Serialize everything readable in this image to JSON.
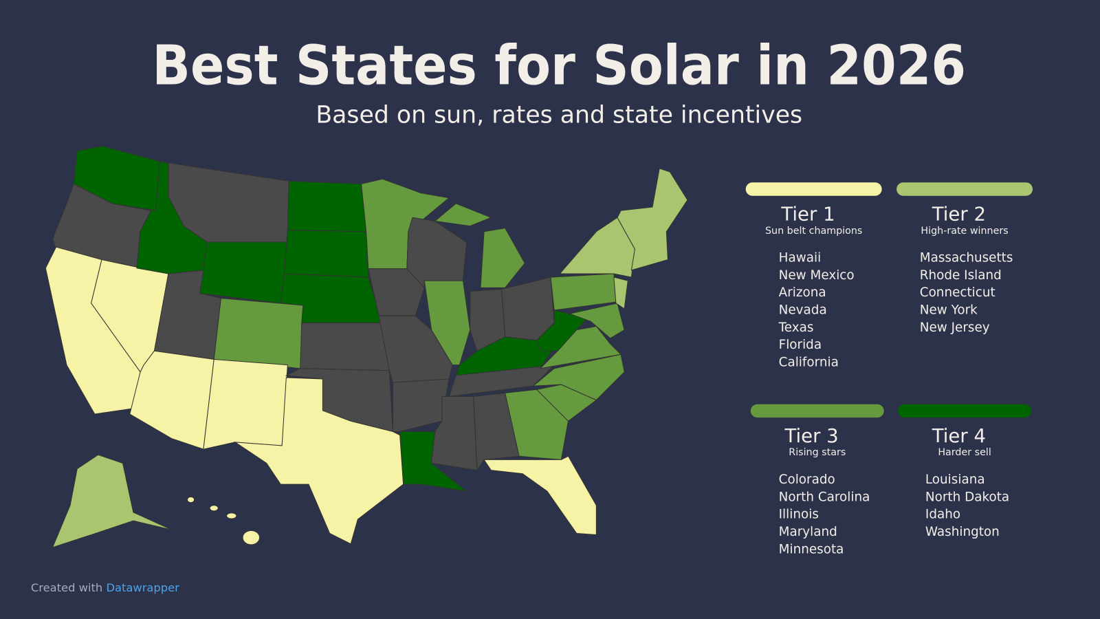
{
  "header": {
    "title": "Best States for Solar in 2026",
    "subtitle": "Based on sun, rates and state incentives"
  },
  "tiers": [
    {
      "name": "Tier 1",
      "subtitle": "Sun belt champions",
      "color": "#f6f2a6",
      "states": [
        "Hawaii",
        "New Mexico",
        "Arizona",
        "Nevada",
        "Texas",
        "Florida",
        "California"
      ]
    },
    {
      "name": "Tier 2",
      "subtitle": "High-rate winners",
      "color": "#a9c56f",
      "states": [
        "Massachusetts",
        "Rhode Island",
        "Connecticut",
        "New York",
        "New Jersey"
      ]
    },
    {
      "name": "Tier 3",
      "subtitle": "Rising stars",
      "color": "#659a3e",
      "states": [
        "Colorado",
        "North Carolina",
        "Illinois",
        "Maryland",
        "Minnesota"
      ]
    },
    {
      "name": "Tier 4",
      "subtitle": "Harder sell",
      "color": "#006400",
      "states": [
        "Louisiana",
        "North Dakota",
        "Idaho",
        "Washington"
      ]
    }
  ],
  "footer": {
    "prefix": "Created with",
    "link": "Datawrapper"
  }
}
